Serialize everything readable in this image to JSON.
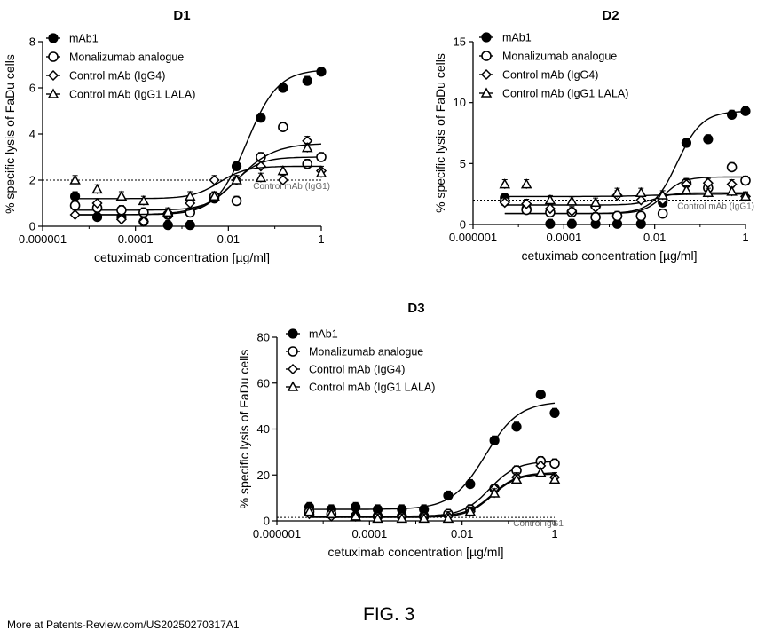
{
  "footer": {
    "source": "More at Patents-Review.com/US20250270317A1",
    "figure_label": "FIG. 3"
  },
  "chart_data": [
    {
      "type": "scatter",
      "title": "D1",
      "xlabel": "cetuximab concentration [µg/ml]",
      "ylabel": "% specific lysis of FaDu cells",
      "xscale": "log",
      "xlim": [
        1e-06,
        1
      ],
      "ylim": [
        0,
        8
      ],
      "xticks": [
        1e-06,
        0.0001,
        0.01,
        1
      ],
      "xtick_labels": [
        "0.000001",
        "0.0001",
        "0.01",
        "1"
      ],
      "yticks": [
        0,
        2,
        4,
        6,
        8
      ],
      "control_line": {
        "value": 2.0,
        "label": "Control mAb (IgG1)"
      },
      "legend_position": "top-left",
      "x": [
        5e-06,
        1.5e-05,
        5e-05,
        0.00015,
        0.0005,
        0.0015,
        0.005,
        0.015,
        0.05,
        0.15,
        0.5,
        1
      ],
      "series": [
        {
          "name": "mAb1",
          "marker": "filled-circle",
          "values": [
            1.3,
            0.4,
            0.4,
            0.2,
            0.05,
            0.05,
            1.2,
            2.6,
            4.7,
            6.0,
            6.3,
            6.7
          ],
          "fit": {
            "bottom": 0.5,
            "top": 6.8,
            "logEC50": -1.6,
            "hill": 1.3
          }
        },
        {
          "name": "Monalizumab analogue",
          "marker": "open-circle",
          "values": [
            0.9,
            0.8,
            0.7,
            0.6,
            0.5,
            0.6,
            1.3,
            1.1,
            3.0,
            4.3,
            2.7,
            3.0
          ],
          "fit": {
            "bottom": 0.7,
            "top": 3.0,
            "logEC50": -1.9,
            "hill": 1.5
          }
        },
        {
          "name": "Control mAb (IgG4)",
          "marker": "open-diamond",
          "values": [
            0.5,
            1.0,
            0.3,
            0.2,
            0.5,
            1.0,
            2.0,
            2.0,
            2.6,
            2.0,
            3.7,
            2.4
          ],
          "fit": {
            "bottom": 0.5,
            "top": 3.6,
            "logEC50": -1.8,
            "hill": 1.1
          }
        },
        {
          "name": "Control mAb (IgG1 LALA)",
          "marker": "open-triangle",
          "values": [
            2.0,
            1.6,
            1.3,
            1.1,
            0.6,
            1.3,
            1.3,
            2.0,
            2.1,
            2.4,
            3.4,
            2.3
          ],
          "fit": {
            "bottom": 1.2,
            "top": 2.6,
            "logEC50": -2.2,
            "hill": 1.5
          }
        }
      ]
    },
    {
      "type": "scatter",
      "title": "D2",
      "xlabel": "cetuximab concentration [µg/ml]",
      "ylabel": "% specific lysis of FaDu cells",
      "xscale": "log",
      "xlim": [
        1e-06,
        1
      ],
      "ylim": [
        0,
        15
      ],
      "xticks": [
        1e-06,
        0.0001,
        0.01,
        1
      ],
      "xtick_labels": [
        "0.000001",
        "0.0001",
        "0.01",
        "1"
      ],
      "yticks": [
        0,
        5,
        10,
        15
      ],
      "control_line": {
        "value": 2.0,
        "label": "Control mAb (IgG1)"
      },
      "legend_position": "top-left",
      "x": [
        5e-06,
        1.5e-05,
        5e-05,
        0.00015,
        0.0005,
        0.0015,
        0.005,
        0.015,
        0.05,
        0.15,
        0.5,
        1
      ],
      "series": [
        {
          "name": "mAb1",
          "marker": "filled-circle",
          "values": [
            2.2,
            1.3,
            0.05,
            0.05,
            0.05,
            0.05,
            0.05,
            1.8,
            6.7,
            7.0,
            9.0,
            9.3
          ],
          "fit": {
            "bottom": 0.9,
            "top": 9.3,
            "logEC50": -1.5,
            "hill": 1.6
          }
        },
        {
          "name": "Monalizumab analogue",
          "marker": "open-circle",
          "values": [
            1.9,
            1.2,
            1.0,
            1.0,
            0.6,
            0.7,
            0.7,
            0.9,
            3.4,
            3.0,
            4.7,
            3.6
          ],
          "fit": {
            "bottom": 0.9,
            "top": 3.9,
            "logEC50": -1.8,
            "hill": 2.0
          }
        },
        {
          "name": "Control mAb (IgG4)",
          "marker": "open-diamond",
          "values": [
            1.8,
            1.7,
            1.3,
            1.1,
            1.4,
            2.4,
            2.0,
            2.0,
            3.3,
            3.4,
            3.3,
            2.3
          ],
          "fit": {
            "bottom": 1.6,
            "top": 2.6,
            "logEC50": -2.0,
            "hill": 2.0
          }
        },
        {
          "name": "Control mAb (IgG1 LALA)",
          "marker": "open-triangle",
          "values": [
            3.3,
            3.3,
            2.0,
            1.9,
            1.8,
            2.6,
            2.6,
            2.4,
            2.8,
            2.6,
            2.7,
            2.3
          ],
          "fit": {
            "bottom": 2.3,
            "top": 2.5,
            "logEC50": -2.0,
            "hill": 1.0
          }
        }
      ]
    },
    {
      "type": "scatter",
      "title": "D3",
      "xlabel": "cetuximab concentration [µg/ml]",
      "ylabel": "% specific lysis of FaDu cells",
      "xscale": "log",
      "xlim": [
        1e-06,
        1
      ],
      "ylim": [
        0,
        80
      ],
      "xticks": [
        1e-06,
        0.0001,
        0.01,
        1
      ],
      "xtick_labels": [
        "0.000001",
        "0.0001",
        "0.01",
        "1"
      ],
      "yticks": [
        0,
        20,
        40,
        60,
        80
      ],
      "control_line": {
        "value": 1.5,
        "label": "Control IgG1"
      },
      "legend_position": "top-left",
      "x": [
        5e-06,
        1.5e-05,
        5e-05,
        0.00015,
        0.0005,
        0.0015,
        0.005,
        0.015,
        0.05,
        0.15,
        0.5,
        1
      ],
      "series": [
        {
          "name": "mAb1",
          "marker": "filled-circle",
          "values": [
            6,
            5,
            6,
            5,
            5,
            5,
            11,
            16,
            35,
            41,
            55,
            47
          ],
          "fit": {
            "bottom": 5,
            "top": 52,
            "logEC50": -1.5,
            "hill": 1.2
          }
        },
        {
          "name": "Monalizumab analogue",
          "marker": "open-circle",
          "values": [
            4,
            3,
            2,
            2,
            2,
            2,
            3,
            5,
            14,
            22,
            26,
            25
          ],
          "fit": {
            "bottom": 2,
            "top": 26,
            "logEC50": -1.4,
            "hill": 1.5
          }
        },
        {
          "name": "Control mAb (IgG4)",
          "marker": "open-diamond",
          "values": [
            3,
            2,
            2,
            2,
            2,
            2,
            2,
            4,
            14,
            19,
            24,
            19
          ],
          "fit": {
            "bottom": 2,
            "top": 21,
            "logEC50": -1.35,
            "hill": 1.6
          }
        },
        {
          "name": "Control mAb (IgG1 LALA)",
          "marker": "open-triangle",
          "values": [
            4,
            3,
            2,
            1,
            1,
            1,
            1,
            4,
            12,
            18,
            21,
            18
          ],
          "fit": {
            "bottom": 1.5,
            "top": 20.5,
            "logEC50": -1.35,
            "hill": 1.6
          }
        }
      ]
    }
  ]
}
